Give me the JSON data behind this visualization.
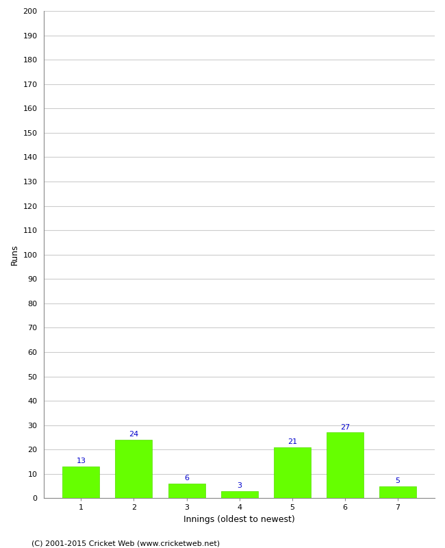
{
  "title": "",
  "categories": [
    "1",
    "2",
    "3",
    "4",
    "5",
    "6",
    "7"
  ],
  "values": [
    13,
    24,
    6,
    3,
    21,
    27,
    5
  ],
  "bar_color": "#66ff00",
  "bar_edge_color": "#55dd00",
  "label_color": "#0000cc",
  "xlabel": "Innings (oldest to newest)",
  "ylabel": "Runs",
  "ylim": [
    0,
    200
  ],
  "ytick_interval": 10,
  "background_color": "#ffffff",
  "grid_color": "#cccccc",
  "footer": "(C) 2001-2015 Cricket Web (www.cricketweb.net)",
  "label_fontsize": 9,
  "tick_fontsize": 8,
  "footer_fontsize": 8,
  "value_label_fontsize": 8,
  "bar_width": 0.7
}
